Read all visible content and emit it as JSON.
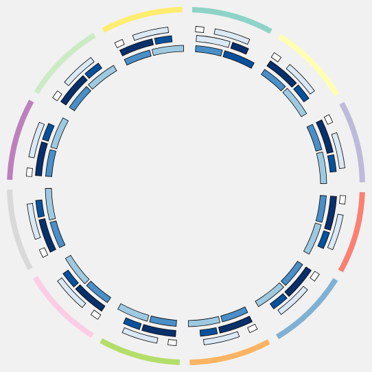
{
  "diagram": {
    "kind": "circular-track-diagram",
    "segments": [
      {
        "color": "#8dd3c7",
        "lanes": [
          [
            "#ffffff",
            "#dbe9f6"
          ],
          [
            "#dbe9f6",
            "#08306b"
          ],
          [
            "#4a8fc8",
            "#08519c"
          ]
        ]
      },
      {
        "color": "#ffffb3",
        "lanes": [
          [
            "#ffffff",
            "#dbe9f6"
          ],
          [
            "#08306b",
            "#08519c"
          ],
          [
            "#4a8fc8",
            "#9ecae1"
          ]
        ]
      },
      {
        "color": "#bebada",
        "lanes": [
          [
            "#ffffff",
            "#dbe9f6"
          ],
          [
            "#08306b",
            "#08519c"
          ],
          [
            "#4a8fc8",
            "#9ecae1"
          ]
        ]
      },
      {
        "color": "#fb8072",
        "lanes": [
          [
            "#ffffff",
            "#dbe9f6"
          ],
          [
            "#08306b",
            "#08519c"
          ],
          [
            "#4a8fc8",
            "#9ecae1"
          ]
        ]
      },
      {
        "color": "#80b1d3",
        "lanes": [
          [
            "#ffffff",
            "#dbe9f6"
          ],
          [
            "#08306b",
            "#08519c"
          ],
          [
            "#4a8fc8",
            "#9ecae1"
          ]
        ]
      },
      {
        "color": "#fdb462",
        "lanes": [
          [
            "#ffffff",
            "#dbe9f6"
          ],
          [
            "#08306b",
            "#08519c"
          ],
          [
            "#4a8fc8",
            "#9ecae1"
          ]
        ]
      },
      {
        "color": "#b3de69",
        "lanes": [
          [
            "#ffffff",
            "#dbe9f6"
          ],
          [
            "#08306b",
            "#08519c"
          ],
          [
            "#4a8fc8",
            "#9ecae1"
          ]
        ]
      },
      {
        "color": "#fccde5",
        "lanes": [
          [
            "#ffffff",
            "#dbe9f6"
          ],
          [
            "#08306b",
            "#08519c"
          ],
          [
            "#4a8fc8",
            "#9ecae1"
          ]
        ]
      },
      {
        "color": "#d9d9d9",
        "lanes": [
          [
            "#ffffff",
            "#dbe9f6"
          ],
          [
            "#08306b",
            "#08519c"
          ],
          [
            "#4a8fc8",
            "#9ecae1"
          ]
        ]
      },
      {
        "color": "#bc80bd",
        "lanes": [
          [
            "#ffffff",
            "#dbe9f6"
          ],
          [
            "#08306b",
            "#08519c"
          ],
          [
            "#4a8fc8",
            "#9ecae1"
          ]
        ]
      },
      {
        "color": "#ccebc5",
        "lanes": [
          [
            "#ffffff",
            "#dbe9f6"
          ],
          [
            "#08306b",
            "#08519c"
          ],
          [
            "#4a8fc8",
            "#9ecae1"
          ]
        ]
      },
      {
        "color": "#ffed6f",
        "lanes": [
          [
            "#ffffff",
            "#dbe9f6"
          ],
          [
            "#08306b",
            "#08519c"
          ],
          [
            "#4a8fc8",
            "#9ecae1"
          ]
        ]
      }
    ]
  }
}
